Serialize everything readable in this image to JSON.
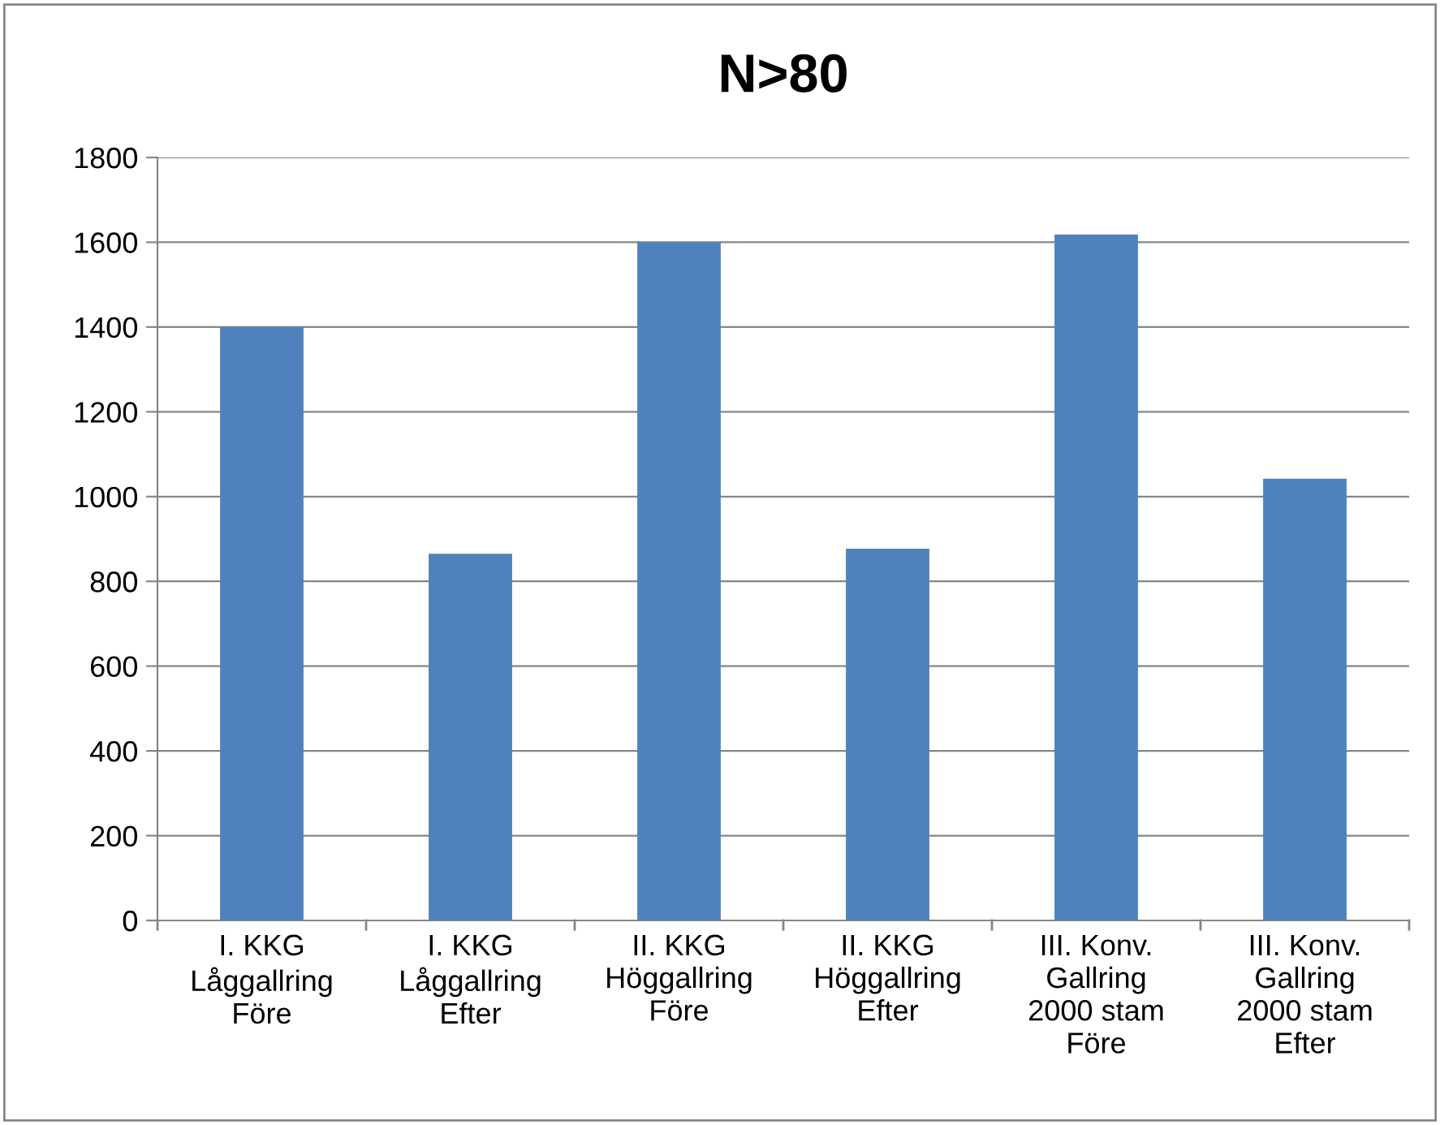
{
  "chart_data": {
    "type": "bar",
    "title": "N>80",
    "categories": [
      "I. KKG\nLåggallring\nFöre",
      "I. KKG\nLåggallring\nEfter",
      "II. KKG\nHöggallring\nFöre",
      "II. KKG\nHöggallring\nEfter",
      "III. Konv.\nGallring\n2000 stam\nFöre",
      "III. Konv.\nGallring\n2000 stam\nEfter"
    ],
    "values": [
      1400,
      865,
      1600,
      877,
      1618,
      1042
    ],
    "color": "#4f81bd",
    "ylim": [
      0,
      1800
    ],
    "yticks": [
      0,
      200,
      400,
      600,
      800,
      1000,
      1200,
      1400,
      1600,
      1800
    ],
    "grid": "y",
    "legend": false
  }
}
